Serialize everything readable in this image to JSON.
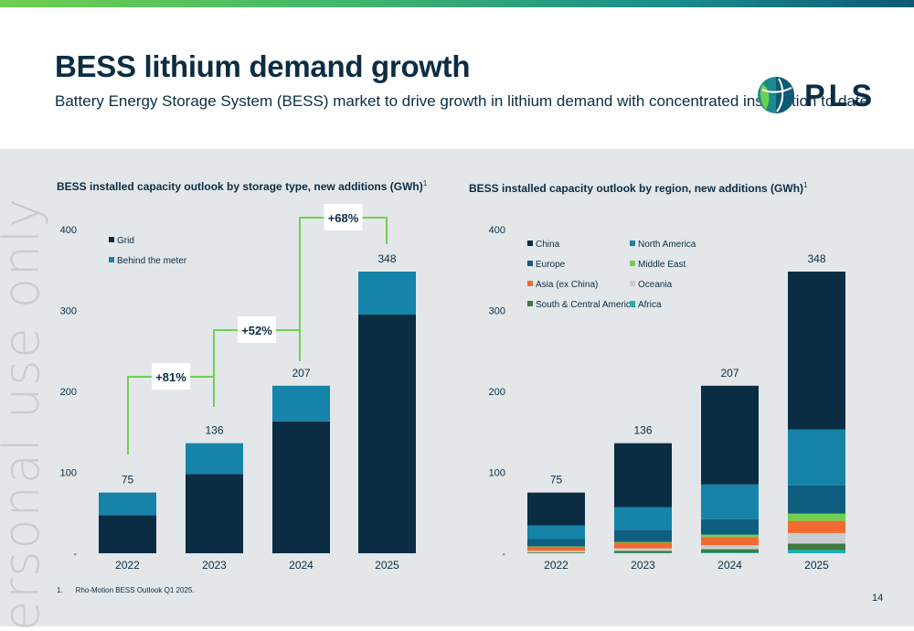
{
  "header": {
    "title": "BESS lithium demand growth",
    "subtitle": "Battery Energy Storage System (BESS) market to drive growth in lithium demand with concentrated installation to date",
    "logo_text": "PLS"
  },
  "watermark": "ersonal use only",
  "chart_data": [
    {
      "type": "bar",
      "stacked": true,
      "title": "BESS installed capacity outlook by storage type, new additions (GWh)",
      "title_sup": "1",
      "categories": [
        "2022",
        "2023",
        "2024",
        "2025"
      ],
      "ylim": [
        0,
        400
      ],
      "yticks": [
        0,
        100,
        200,
        300,
        400
      ],
      "ytick_labels": [
        "-",
        "100",
        "200",
        "300",
        "400"
      ],
      "totals": [
        75,
        136,
        207,
        348
      ],
      "legend_position": "top-left",
      "series": [
        {
          "name": "Grid",
          "color": "#0b2d44",
          "values": [
            47,
            98,
            163,
            295
          ]
        },
        {
          "name": "Behind the meter",
          "color": "#1683a8",
          "values": [
            28,
            38,
            44,
            53
          ]
        }
      ],
      "growth_labels": [
        "+81%",
        "+52%",
        "+68%"
      ],
      "connector_color": "#6fd04f"
    },
    {
      "type": "bar",
      "stacked": true,
      "title": "BESS installed capacity outlook by region, new additions (GWh)",
      "title_sup": "1",
      "categories": [
        "2022",
        "2023",
        "2024",
        "2025"
      ],
      "ylim": [
        0,
        400
      ],
      "yticks": [
        0,
        100,
        200,
        300,
        400
      ],
      "ytick_labels": [
        "-",
        "100",
        "200",
        "300",
        "400"
      ],
      "totals": [
        75,
        136,
        207,
        348
      ],
      "legend_position": "top-left",
      "series": [
        {
          "name": "Africa",
          "color": "#19b3b8",
          "values": [
            0,
            0.5,
            1,
            4
          ]
        },
        {
          "name": "South & Central America",
          "color": "#3f7a3f",
          "values": [
            1,
            2.5,
            4,
            8
          ]
        },
        {
          "name": "Oceania",
          "color": "#c9cdd1",
          "values": [
            2,
            3,
            5,
            13
          ]
        },
        {
          "name": "Asia (ex China)",
          "color": "#f26a30",
          "values": [
            5,
            7,
            10,
            15
          ]
        },
        {
          "name": "Middle East",
          "color": "#6fd04f",
          "values": [
            0.5,
            1,
            3,
            9
          ]
        },
        {
          "name": "Europe",
          "color": "#0e5e80",
          "values": [
            9,
            15,
            19,
            35
          ]
        },
        {
          "name": "North America",
          "color": "#1683a8",
          "values": [
            17,
            28,
            43,
            69
          ]
        },
        {
          "name": "China",
          "color": "#0b2d44",
          "values": [
            40.5,
            79,
            122,
            195
          ]
        }
      ],
      "legend_order": [
        "China",
        "North America",
        "Europe",
        "Middle East",
        "Asia (ex China)",
        "Oceania",
        "South & Central America",
        "Africa"
      ]
    }
  ],
  "footnote": {
    "number": "1.",
    "text": "Rho-Motion BESS Outlook Q1 2025."
  },
  "page_number": "14"
}
